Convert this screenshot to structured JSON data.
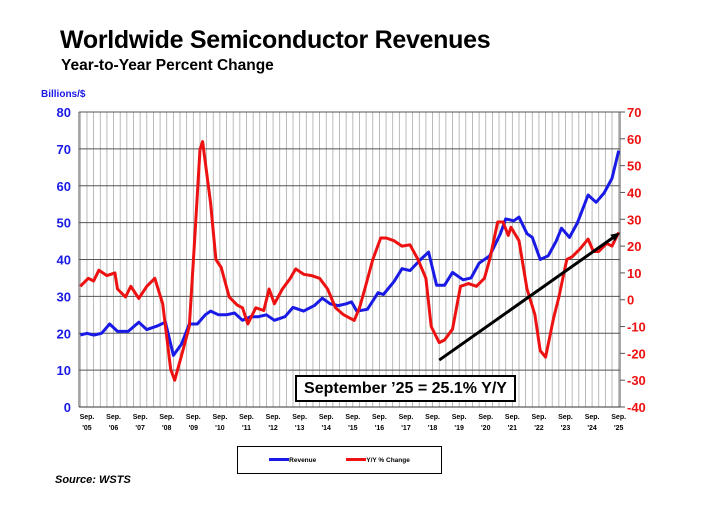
{
  "chart_data": {
    "type": "line",
    "title": "Worldwide Semiconductor Revenues",
    "subtitle": "Year-to-Year Percent Change",
    "ylabel": "Billions/$",
    "ylim": [
      0,
      80
    ],
    "y2lim": [
      -40,
      70
    ],
    "yticks": [
      0,
      10,
      20,
      30,
      40,
      50,
      60,
      70,
      80
    ],
    "y2ticks": [
      -40,
      -30,
      -20,
      -10,
      0,
      10,
      20,
      30,
      40,
      50,
      60,
      70
    ],
    "xlim": [
      2005.45,
      2025.8
    ],
    "xticks": [
      {
        "x": 2005.75,
        "l1": "Sep.",
        "l2": "'05"
      },
      {
        "x": 2006.75,
        "l1": "Sep.",
        "l2": "'06"
      },
      {
        "x": 2007.75,
        "l1": "Sep.",
        "l2": "'07"
      },
      {
        "x": 2008.75,
        "l1": "Sep.",
        "l2": "'08"
      },
      {
        "x": 2009.75,
        "l1": "Sep.",
        "l2": "'09"
      },
      {
        "x": 2010.75,
        "l1": "Sep.",
        "l2": "'10"
      },
      {
        "x": 2011.75,
        "l1": "Sep.",
        "l2": "'11"
      },
      {
        "x": 2012.75,
        "l1": "Sep.",
        "l2": "'12"
      },
      {
        "x": 2013.75,
        "l1": "Sep.",
        "l2": "'13"
      },
      {
        "x": 2014.75,
        "l1": "Sep.",
        "l2": "'14"
      },
      {
        "x": 2015.75,
        "l1": "Sep.",
        "l2": "'15"
      },
      {
        "x": 2016.75,
        "l1": "Sep.",
        "l2": "'16"
      },
      {
        "x": 2017.75,
        "l1": "Sep.",
        "l2": "'17"
      },
      {
        "x": 2018.75,
        "l1": "Sep.",
        "l2": "'18"
      },
      {
        "x": 2019.75,
        "l1": "Sep.",
        "l2": "'19"
      },
      {
        "x": 2020.75,
        "l1": "Sep.",
        "l2": "'20"
      },
      {
        "x": 2021.75,
        "l1": "Sep.",
        "l2": "'21"
      },
      {
        "x": 2022.75,
        "l1": "Sep.",
        "l2": "'22"
      },
      {
        "x": 2023.75,
        "l1": "Sep.",
        "l2": "'23"
      },
      {
        "x": 2024.75,
        "l1": "Sep.",
        "l2": "'24"
      },
      {
        "x": 2025.75,
        "l1": "Sep.",
        "l2": "'25"
      }
    ],
    "series": [
      {
        "name": "Revenue",
        "axis": "left",
        "color": "#1a1ae6",
        "points": [
          [
            2005.5,
            19.5
          ],
          [
            2005.75,
            20
          ],
          [
            2006.0,
            19.5
          ],
          [
            2006.3,
            20
          ],
          [
            2006.6,
            22.5
          ],
          [
            2006.9,
            20.5
          ],
          [
            2007.3,
            20.5
          ],
          [
            2007.7,
            23
          ],
          [
            2008.0,
            21
          ],
          [
            2008.4,
            22
          ],
          [
            2008.7,
            23
          ],
          [
            2009.0,
            14
          ],
          [
            2009.3,
            17
          ],
          [
            2009.6,
            22.5
          ],
          [
            2009.9,
            22.5
          ],
          [
            2010.2,
            25
          ],
          [
            2010.4,
            26
          ],
          [
            2010.7,
            25
          ],
          [
            2011.0,
            25
          ],
          [
            2011.3,
            25.5
          ],
          [
            2011.6,
            23.5
          ],
          [
            2011.9,
            24.5
          ],
          [
            2012.2,
            24.5
          ],
          [
            2012.5,
            25
          ],
          [
            2012.8,
            23.5
          ],
          [
            2013.2,
            24.5
          ],
          [
            2013.5,
            27
          ],
          [
            2013.9,
            26
          ],
          [
            2014.3,
            27.5
          ],
          [
            2014.6,
            29.5
          ],
          [
            2014.9,
            28
          ],
          [
            2015.2,
            27.5
          ],
          [
            2015.5,
            28
          ],
          [
            2015.7,
            28.5
          ],
          [
            2015.9,
            26
          ],
          [
            2016.3,
            26.5
          ],
          [
            2016.7,
            31
          ],
          [
            2016.9,
            30.5
          ],
          [
            2017.3,
            34
          ],
          [
            2017.6,
            37.5
          ],
          [
            2017.9,
            37
          ],
          [
            2018.3,
            40
          ],
          [
            2018.6,
            42
          ],
          [
            2018.9,
            33
          ],
          [
            2019.2,
            33
          ],
          [
            2019.5,
            36.5
          ],
          [
            2019.9,
            34.5
          ],
          [
            2020.2,
            35
          ],
          [
            2020.5,
            39
          ],
          [
            2020.9,
            41
          ],
          [
            2021.3,
            47
          ],
          [
            2021.5,
            51
          ],
          [
            2021.8,
            50.5
          ],
          [
            2022.0,
            51.5
          ],
          [
            2022.3,
            47
          ],
          [
            2022.5,
            46
          ],
          [
            2022.8,
            40
          ],
          [
            2023.1,
            41
          ],
          [
            2023.4,
            45
          ],
          [
            2023.6,
            48.5
          ],
          [
            2023.9,
            46
          ],
          [
            2024.2,
            50
          ],
          [
            2024.6,
            57.5
          ],
          [
            2024.9,
            55.5
          ],
          [
            2025.2,
            58
          ],
          [
            2025.5,
            62
          ],
          [
            2025.75,
            69.5
          ]
        ]
      },
      {
        "name": "Y/Y % Change",
        "axis": "right",
        "color": "#ee1111",
        "points": [
          [
            2005.5,
            5
          ],
          [
            2005.8,
            8
          ],
          [
            2006.0,
            7
          ],
          [
            2006.2,
            11
          ],
          [
            2006.5,
            9
          ],
          [
            2006.8,
            10
          ],
          [
            2006.9,
            4
          ],
          [
            2007.2,
            1
          ],
          [
            2007.4,
            5
          ],
          [
            2007.7,
            0.5
          ],
          [
            2008.0,
            5
          ],
          [
            2008.3,
            8
          ],
          [
            2008.6,
            -1.5
          ],
          [
            2008.9,
            -26
          ],
          [
            2009.05,
            -30
          ],
          [
            2009.3,
            -21
          ],
          [
            2009.6,
            -10
          ],
          [
            2009.8,
            22
          ],
          [
            2010.0,
            56
          ],
          [
            2010.1,
            59
          ],
          [
            2010.4,
            36
          ],
          [
            2010.6,
            15
          ],
          [
            2010.8,
            12
          ],
          [
            2011.1,
            1
          ],
          [
            2011.4,
            -2
          ],
          [
            2011.6,
            -3
          ],
          [
            2011.8,
            -9
          ],
          [
            2012.1,
            -3
          ],
          [
            2012.4,
            -4
          ],
          [
            2012.6,
            4
          ],
          [
            2012.8,
            -1.5
          ],
          [
            2013.1,
            4
          ],
          [
            2013.4,
            8
          ],
          [
            2013.6,
            11.5
          ],
          [
            2013.9,
            9.5
          ],
          [
            2014.2,
            9
          ],
          [
            2014.5,
            8
          ],
          [
            2014.8,
            4
          ],
          [
            2015.1,
            -3
          ],
          [
            2015.4,
            -5.6
          ],
          [
            2015.8,
            -7.7
          ],
          [
            2016.0,
            -3
          ],
          [
            2016.2,
            4
          ],
          [
            2016.5,
            15
          ],
          [
            2016.8,
            23
          ],
          [
            2017.0,
            23
          ],
          [
            2017.3,
            22
          ],
          [
            2017.6,
            20
          ],
          [
            2017.9,
            20.5
          ],
          [
            2018.2,
            15
          ],
          [
            2018.5,
            8
          ],
          [
            2018.7,
            -10
          ],
          [
            2019.0,
            -16
          ],
          [
            2019.2,
            -15
          ],
          [
            2019.5,
            -11
          ],
          [
            2019.8,
            5
          ],
          [
            2020.1,
            6
          ],
          [
            2020.4,
            5
          ],
          [
            2020.7,
            8
          ],
          [
            2020.9,
            15
          ],
          [
            2021.2,
            29
          ],
          [
            2021.4,
            29
          ],
          [
            2021.6,
            24
          ],
          [
            2021.7,
            27
          ],
          [
            2022.0,
            22
          ],
          [
            2022.3,
            4
          ],
          [
            2022.6,
            -5.6
          ],
          [
            2022.8,
            -19
          ],
          [
            2023.0,
            -21.4
          ],
          [
            2023.3,
            -7
          ],
          [
            2023.5,
            1
          ],
          [
            2023.8,
            15
          ],
          [
            2024.0,
            16
          ],
          [
            2024.3,
            19
          ],
          [
            2024.6,
            22.6
          ],
          [
            2024.8,
            18
          ],
          [
            2025.0,
            18
          ],
          [
            2025.3,
            21
          ],
          [
            2025.5,
            20
          ],
          [
            2025.75,
            25.1
          ]
        ]
      }
    ],
    "trend_arrow": {
      "from": [
        2019.0,
        -22.5
      ],
      "to": [
        2025.8,
        25
      ],
      "axis": "right"
    },
    "annotation": "September ’25 = 25.1% Y/Y",
    "legend": [
      "Revenue",
      "Y/Y % Change"
    ],
    "legend_placement": "bottom",
    "grid": true,
    "source": "Source: WSTS"
  }
}
